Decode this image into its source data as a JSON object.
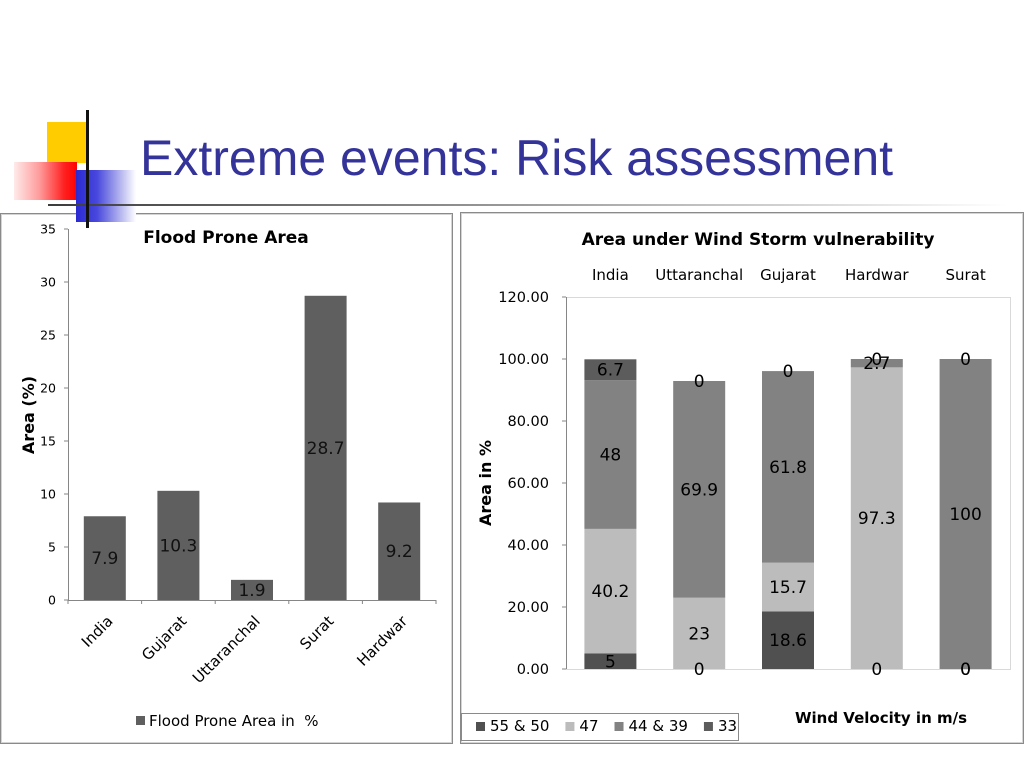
{
  "slide": {
    "title": "Extreme events: Risk assessment"
  },
  "colors": {
    "title": "#333399",
    "axis": "#868686",
    "frame_border": "#8a8a8a"
  },
  "chart_data": [
    {
      "type": "bar",
      "title": "Flood Prone Area",
      "ylabel": "Area (%)",
      "categories": [
        "India",
        "Gujarat",
        "Uttaranchal",
        "Surat",
        "Hardwar"
      ],
      "series": [
        {
          "name": "Flood Prone Area in  %",
          "values": [
            7.9,
            10.3,
            1.9,
            28.7,
            9.2
          ],
          "color": "#5f5f5f"
        }
      ],
      "ylim": [
        0,
        35
      ],
      "yticks": [
        "0",
        "5",
        "10",
        "15",
        "20",
        "25",
        "30",
        "35"
      ],
      "data_labels": true,
      "grid": false,
      "legend_position": "bottom"
    },
    {
      "type": "bar",
      "stacked": true,
      "title": "Area under Wind Storm vulnerability",
      "ylabel": "Area in %",
      "xlabel": "Wind Velocity in m/s",
      "categories": [
        "India",
        "Uttaranchal",
        "Gujarat",
        "Hardwar",
        "Surat"
      ],
      "category_label_placement": "top",
      "series": [
        {
          "name": "55 & 50",
          "values": [
            5,
            0,
            18.6,
            0,
            0
          ],
          "color": "#505050"
        },
        {
          "name": "47",
          "values": [
            40.2,
            23,
            15.7,
            97.3,
            0
          ],
          "color": "#bcbcbc"
        },
        {
          "name": "44 & 39",
          "values": [
            48,
            69.9,
            61.8,
            2.7,
            100
          ],
          "color": "#828282"
        },
        {
          "name": "33",
          "values": [
            6.7,
            0,
            0,
            0,
            0
          ],
          "color": "#5c5c5c"
        }
      ],
      "ylim": [
        0,
        120
      ],
      "yticks": [
        "0.00",
        "20.00",
        "40.00",
        "60.00",
        "80.00",
        "100.00",
        "120.00"
      ],
      "data_labels": true,
      "grid": false,
      "legend_position": "bottom-left"
    }
  ]
}
